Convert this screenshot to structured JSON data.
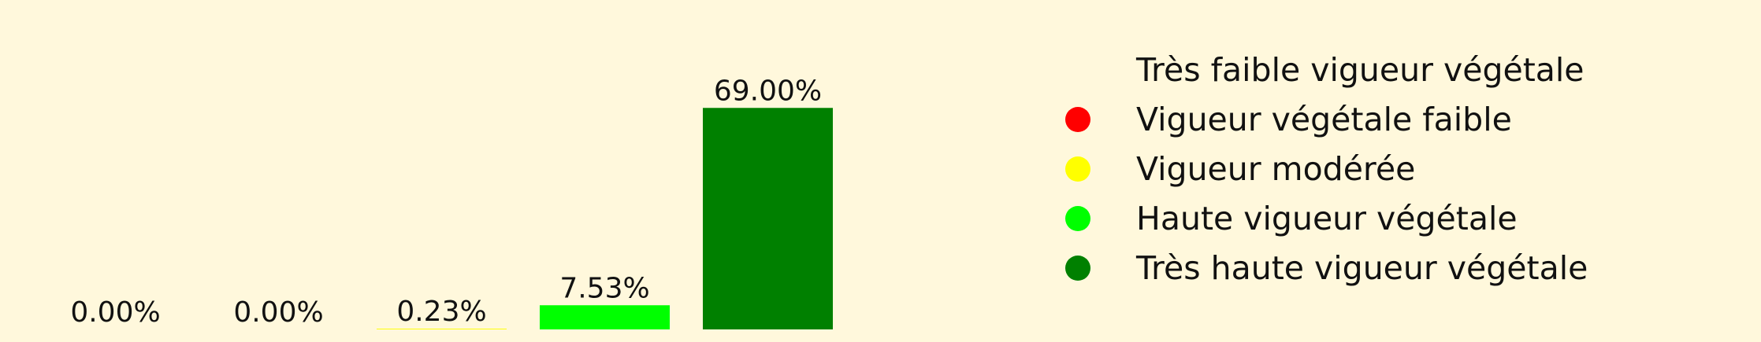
{
  "chart_data": {
    "type": "bar",
    "categories": [
      "Très faible vigueur végétale",
      "Vigueur végétale faible",
      "Vigueur modérée",
      "Haute vigueur végétale",
      "Très haute vigueur végétale"
    ],
    "values": [
      0.0,
      0.0,
      0.23,
      7.53,
      69.0
    ],
    "data_labels": [
      "0.00%",
      "0.00%",
      "0.23%",
      "7.53%",
      "69.00%"
    ],
    "colors": [
      "#FFF8DC",
      "#FF0000",
      "#FFFF00",
      "#00FF00",
      "#008000"
    ],
    "ylim": [
      0,
      72
    ],
    "grid": false,
    "legend_position": "right",
    "legend": [
      {
        "label": "Très faible vigueur végétale",
        "color": "#FFF8DC"
      },
      {
        "label": "Vigueur végétale faible",
        "color": "#FF0000"
      },
      {
        "label": "Vigueur modérée",
        "color": "#FFFF00"
      },
      {
        "label": "Haute vigueur végétale",
        "color": "#00FF00"
      },
      {
        "label": "Très haute vigueur végétale",
        "color": "#008000"
      }
    ]
  }
}
